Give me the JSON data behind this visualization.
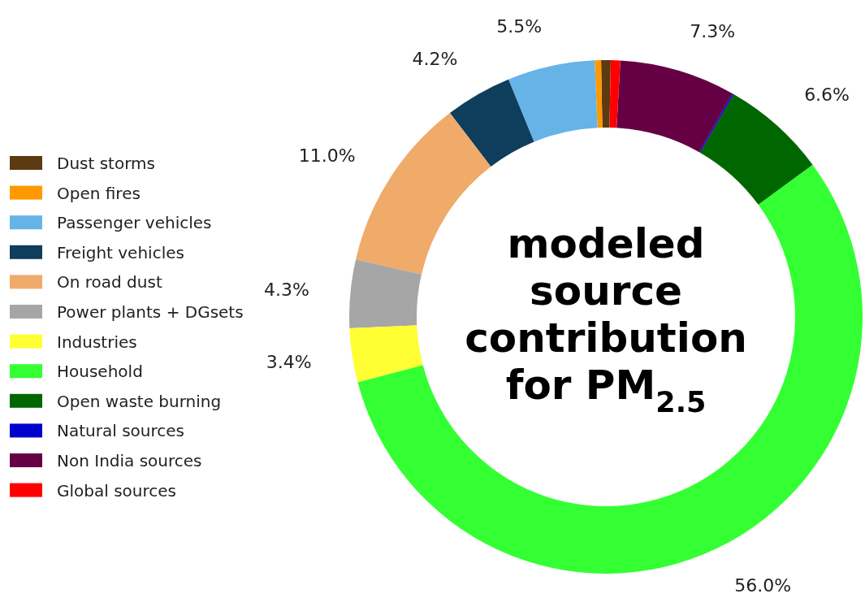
{
  "chart_data": {
    "type": "donut",
    "title": "modeled source contribution for PM$_{2.5}$",
    "categories": [
      "Dust storms",
      "Open fires",
      "Passenger vehicles",
      "Freight vehicles",
      "On road dust",
      "Power plants + DGsets",
      "Industries",
      "Household",
      "Open waste burning",
      "Natural sources",
      "Non India sources",
      "Global sources"
    ],
    "values": [
      0.6,
      0.4,
      5.5,
      4.2,
      11.0,
      4.3,
      3.4,
      56.0,
      6.6,
      0.1,
      7.3,
      0.6
    ],
    "colors": [
      "#5c3a12",
      "#ff9900",
      "#66b3e8",
      "#0f3d5c",
      "#f0aa6a",
      "#a6a6a6",
      "#ffff33",
      "#33ff33",
      "#006600",
      "#0000cc",
      "#660044",
      "#ff0000"
    ],
    "value_labels": [
      null,
      null,
      "5.5%",
      "4.2%",
      "11.0%",
      "4.3%",
      "3.4%",
      "56.0%",
      "6.6%",
      null,
      "7.3%",
      null
    ],
    "legend": "left"
  }
}
